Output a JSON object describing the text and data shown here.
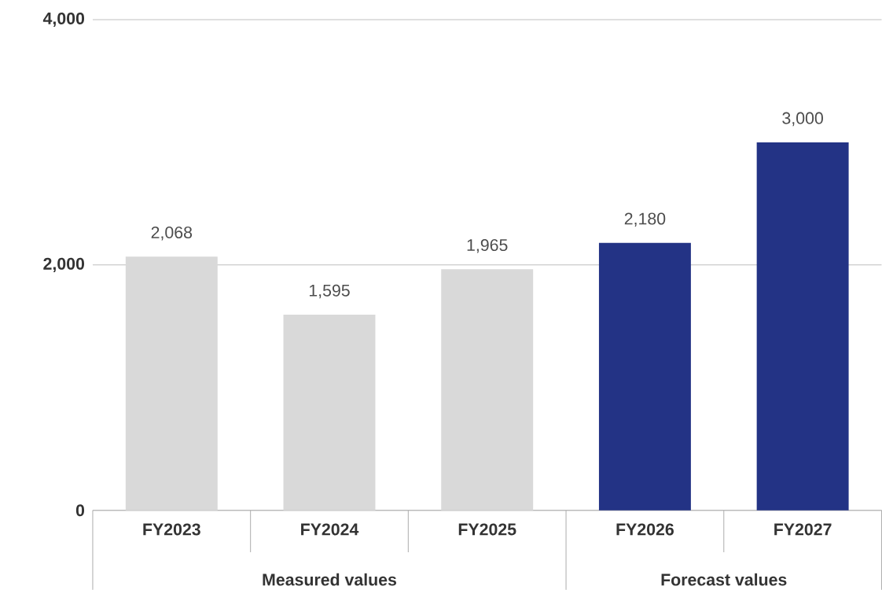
{
  "chart_data": {
    "type": "bar",
    "categories": [
      "FY2023",
      "FY2024",
      "FY2025",
      "FY2026",
      "FY2027"
    ],
    "values": [
      2068,
      1595,
      1965,
      2180,
      3000
    ],
    "colors": [
      "#d9d9d9",
      "#d9d9d9",
      "#d9d9d9",
      "#233385",
      "#233385"
    ],
    "value_labels": [
      "2,068",
      "1,595",
      "1,965",
      "2,180",
      "3,000"
    ],
    "ylim": [
      0,
      4000
    ],
    "yticks": [
      0,
      {
        "value": 2000,
        "label": "2,000"
      },
      {
        "value": 4000,
        "label": "4,000"
      }
    ],
    "grid": "y",
    "annotations": [
      "Measured values",
      "Forecast values"
    ]
  }
}
